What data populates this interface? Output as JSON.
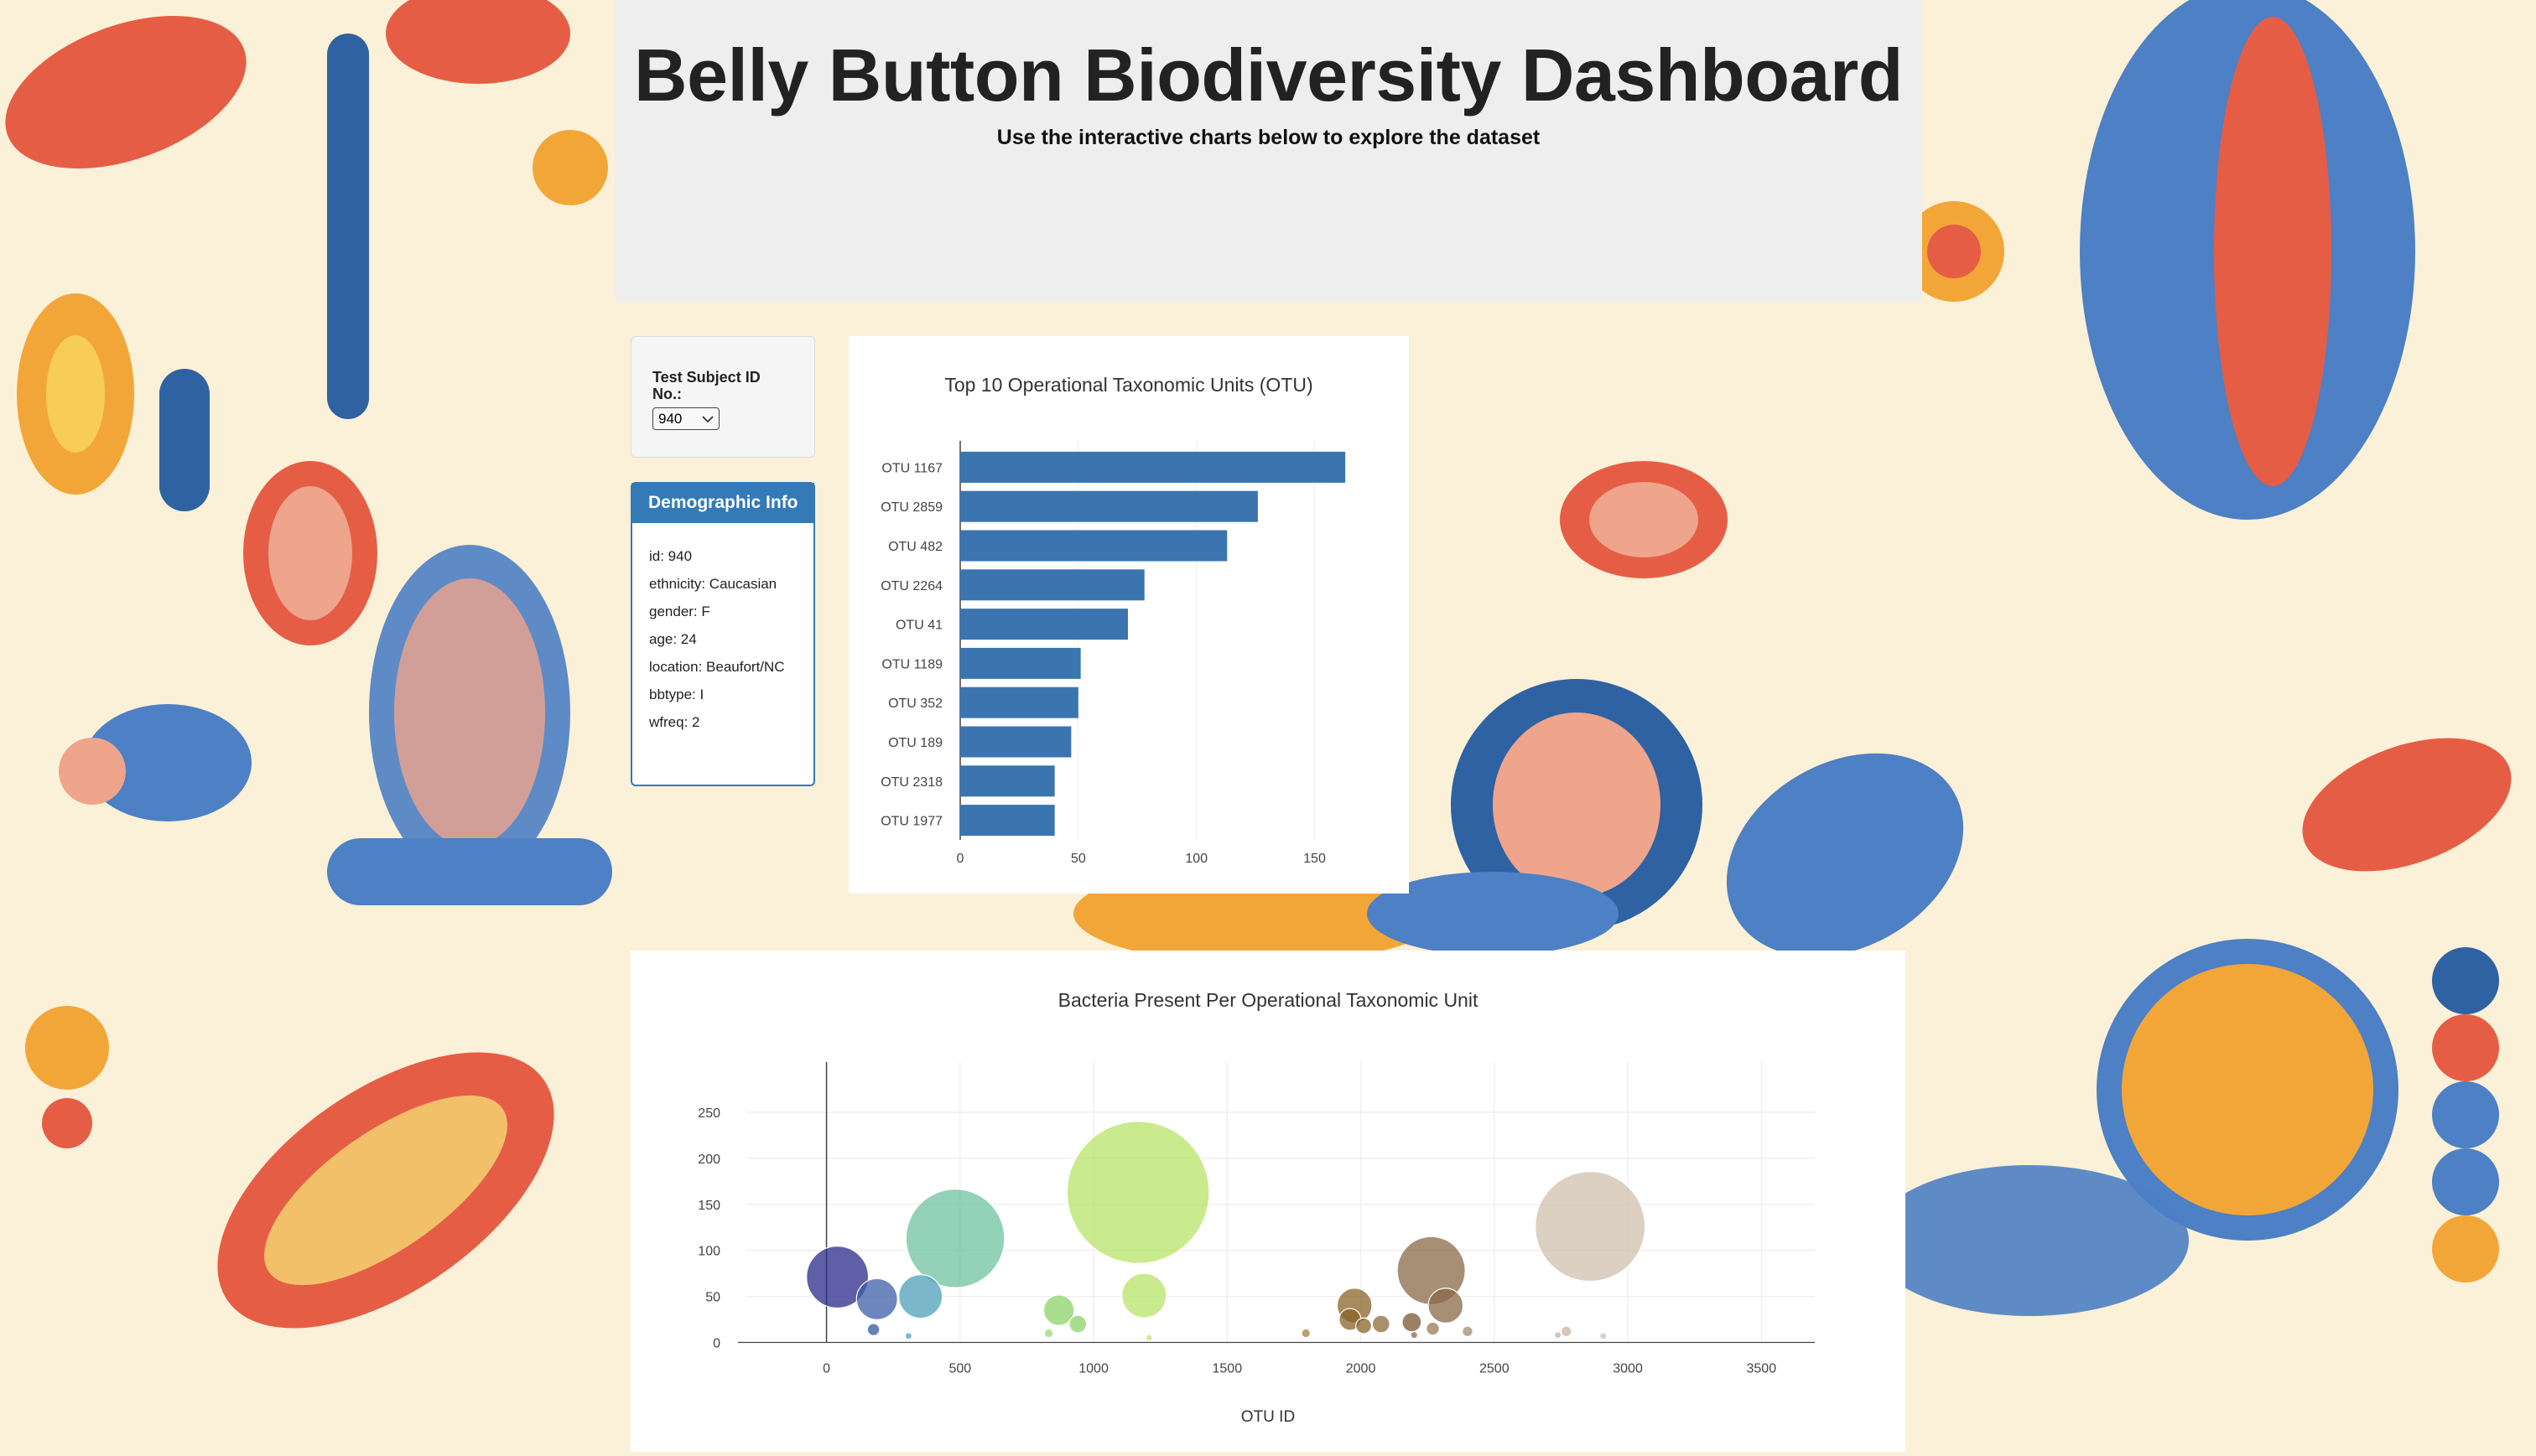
{
  "header": {
    "title": "Belly Button Biodiversity Dashboard",
    "subtitle": "Use the interactive charts below to explore the dataset"
  },
  "selector": {
    "label": "Test Subject ID No.:",
    "selected": "940"
  },
  "demographics": {
    "heading": "Demographic Info",
    "rows": [
      "id: 940",
      "ethnicity: Caucasian",
      "gender: F",
      "age: 24",
      "location: Beaufort/NC",
      "bbtype: I",
      "wfreq: 2"
    ]
  },
  "colors": {
    "bar": "#3a75b0",
    "panel_header": "#337ab7",
    "jumbotron": "#eeeeee"
  },
  "icons": [
    "chevron-down-icon"
  ],
  "chart_data": [
    {
      "type": "bar",
      "orientation": "horizontal",
      "title": "Top 10 Operational Taxonomic Units (OTU)",
      "categories": [
        "OTU 1167",
        "OTU 2859",
        "OTU 482",
        "OTU 2264",
        "OTU 41",
        "OTU 1189",
        "OTU 352",
        "OTU 189",
        "OTU 2318",
        "OTU 1977"
      ],
      "values": [
        163,
        126,
        113,
        78,
        71,
        51,
        50,
        47,
        40,
        40
      ],
      "xlim": [
        0,
        180
      ],
      "x_ticks": [
        "0",
        "50",
        "100",
        "150"
      ],
      "x_tick_values": [
        0,
        50,
        100,
        150
      ]
    },
    {
      "type": "scatter",
      "title": "Bacteria Present Per Operational Taxonomic Unit",
      "xlabel": "OTU ID",
      "ylabel": "",
      "xlim": [
        -300,
        3700
      ],
      "ylim": [
        -5,
        300
      ],
      "x_ticks": [
        "0",
        "500",
        "1000",
        "1500",
        "2000",
        "2500",
        "3000",
        "3500"
      ],
      "x_tick_values": [
        0,
        500,
        1000,
        1500,
        2000,
        2500,
        3000,
        3500
      ],
      "y_ticks": [
        "0",
        "50",
        "100",
        "150",
        "200",
        "250"
      ],
      "y_tick_values": [
        0,
        50,
        100,
        150,
        200,
        250
      ],
      "grid": true,
      "points": [
        {
          "x": 41,
          "y": 71,
          "color": "#2a2a8a"
        },
        {
          "x": 189,
          "y": 47,
          "color": "#3e5da8"
        },
        {
          "x": 176,
          "y": 14,
          "color": "#2f5aa0"
        },
        {
          "x": 352,
          "y": 50,
          "color": "#4f9fb8"
        },
        {
          "x": 307,
          "y": 7,
          "color": "#4fa0c0"
        },
        {
          "x": 482,
          "y": 113,
          "color": "#6fc2a0"
        },
        {
          "x": 870,
          "y": 35,
          "color": "#8cd36a"
        },
        {
          "x": 941,
          "y": 20,
          "color": "#8cd36a"
        },
        {
          "x": 832,
          "y": 10,
          "color": "#9cd870"
        },
        {
          "x": 1167,
          "y": 163,
          "color": "#b8e368"
        },
        {
          "x": 1189,
          "y": 51,
          "color": "#b8e368"
        },
        {
          "x": 1208,
          "y": 5,
          "color": "#c9e27a"
        },
        {
          "x": 1795,
          "y": 10,
          "color": "#a87d40"
        },
        {
          "x": 1977,
          "y": 40,
          "color": "#8a6428"
        },
        {
          "x": 1960,
          "y": 25,
          "color": "#8a6428"
        },
        {
          "x": 2011,
          "y": 18,
          "color": "#8a6428"
        },
        {
          "x": 2076,
          "y": 20,
          "color": "#8d6a3a"
        },
        {
          "x": 2264,
          "y": 78,
          "color": "#8a6a48"
        },
        {
          "x": 2318,
          "y": 40,
          "color": "#8a6a48"
        },
        {
          "x": 2191,
          "y": 22,
          "color": "#7a5530"
        },
        {
          "x": 2270,
          "y": 15,
          "color": "#9a7a58"
        },
        {
          "x": 2200,
          "y": 8,
          "color": "#8a6a48"
        },
        {
          "x": 2400,
          "y": 12,
          "color": "#a08a70"
        },
        {
          "x": 2859,
          "y": 126,
          "color": "#cfc0ae"
        },
        {
          "x": 2770,
          "y": 12,
          "color": "#c8b4a0"
        },
        {
          "x": 2738,
          "y": 8,
          "color": "#c8b4a0"
        },
        {
          "x": 2908,
          "y": 7,
          "color": "#d0c0b0"
        }
      ]
    }
  ]
}
